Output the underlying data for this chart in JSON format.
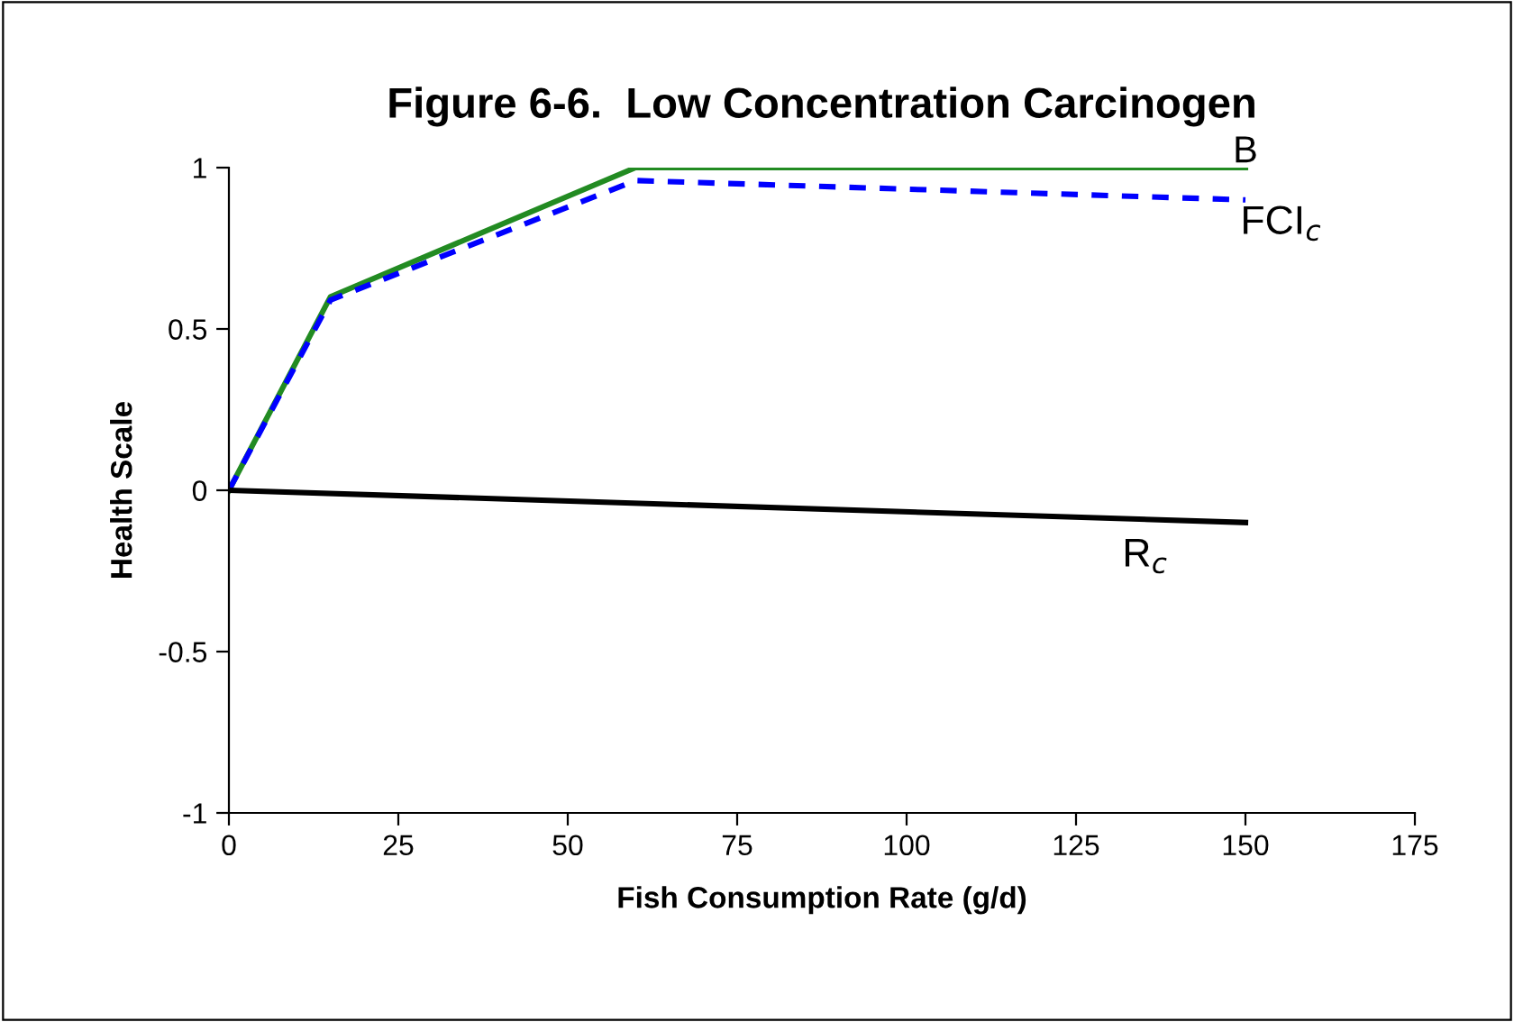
{
  "chart_data": {
    "type": "line",
    "title": "Figure 6-6.  Low Concentration Carcinogen",
    "xlabel": "Fish Consumption Rate (g/d)",
    "ylabel": "Health Scale",
    "series": [
      {
        "name": "B",
        "color": "#228b22",
        "x": [
          0,
          15,
          60,
          150
        ],
        "values": [
          0,
          0.6,
          1,
          1
        ],
        "line_style": "solid"
      },
      {
        "name": "FCI$_{c}$",
        "color": "#0000ff",
        "x": [
          0,
          15,
          60,
          150
        ],
        "values": [
          0,
          0.59,
          0.96,
          0.9
        ],
        "line_style": "dashed"
      },
      {
        "name": "R$_{c}$",
        "color": "#000000",
        "x": [
          0,
          150
        ],
        "values": [
          0,
          -0.1
        ],
        "line_style": "solid"
      }
    ],
    "xlim": [
      0,
      175
    ],
    "xticks": [
      0,
      25,
      50,
      75,
      100,
      125,
      150,
      175
    ],
    "ylim": [
      -1,
      1
    ],
    "yticks": [
      -1,
      -0.5,
      0,
      0.5,
      1
    ],
    "grid": false,
    "legend": false,
    "marker": "none"
  }
}
